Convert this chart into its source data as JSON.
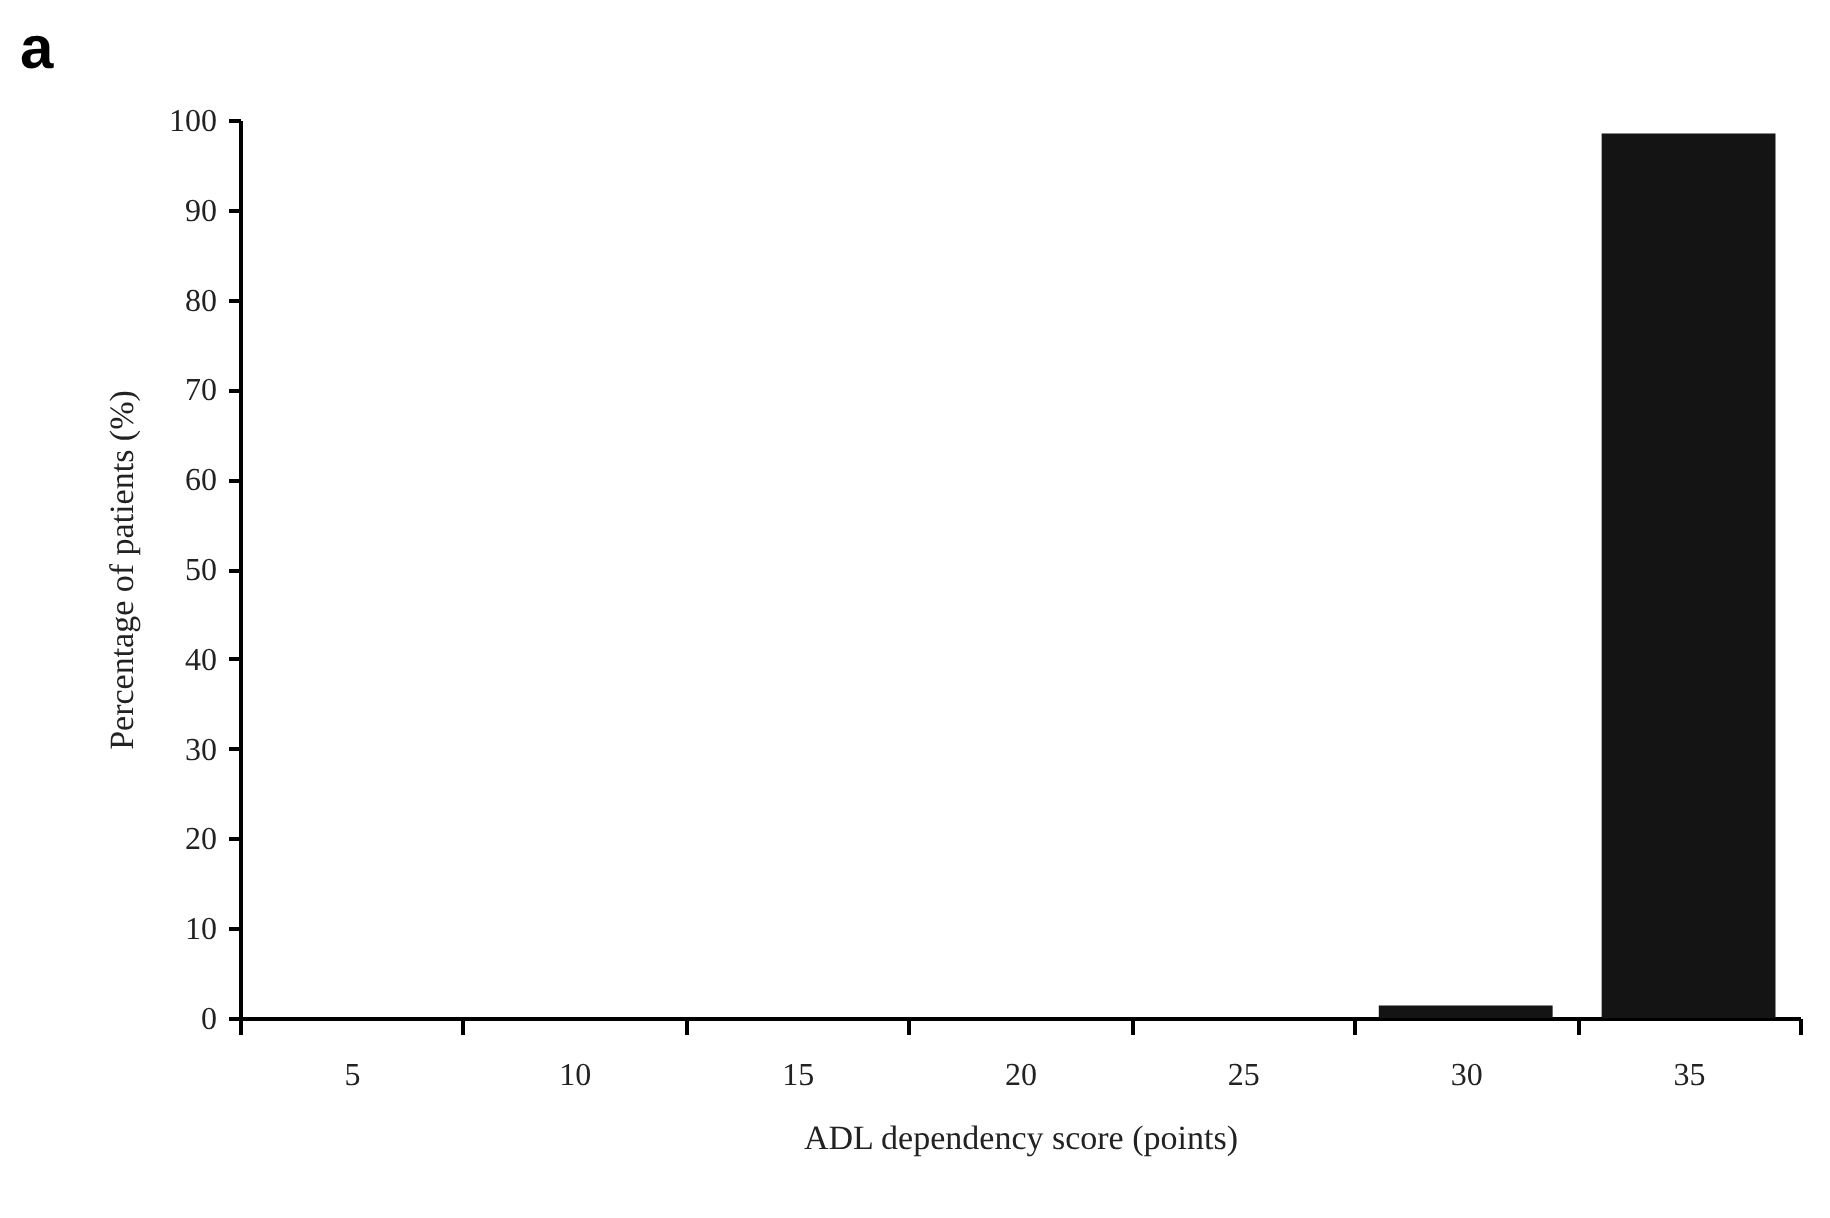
{
  "chart_data": {
    "type": "bar",
    "title": "a",
    "xlabel": "ADL dependency score (points)",
    "ylabel": "Percentage of patients (%)",
    "categories": [
      "5",
      "10",
      "15",
      "20",
      "25",
      "30",
      "35"
    ],
    "values": [
      0,
      0,
      0,
      0,
      0,
      1.4,
      98.5
    ],
    "color": "#141414",
    "ylim": [
      0,
      100
    ],
    "yticks": [
      0,
      10,
      20,
      30,
      40,
      50,
      60,
      70,
      80,
      90,
      100
    ],
    "grid": false
  }
}
